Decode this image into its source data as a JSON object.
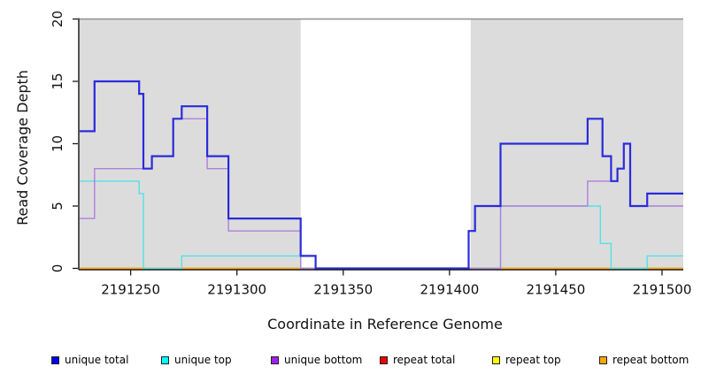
{
  "chart_data": {
    "type": "line",
    "subtype": "step-coverage-plot",
    "title": "",
    "xlabel": "Coordinate in Reference Genome",
    "ylabel": "Read Coverage Depth",
    "xlim": [
      2191226,
      2191510
    ],
    "ylim": [
      0,
      20
    ],
    "x_ticks": [
      2191250,
      2191300,
      2191350,
      2191400,
      2191450,
      2191500
    ],
    "y_ticks": [
      0,
      5,
      10,
      15,
      20
    ],
    "grid": false,
    "legend_position": "bottom",
    "plot_background": "#ffffff",
    "shaded_regions": {
      "color": "#dcdcdc",
      "ranges": [
        [
          2191226,
          2191330
        ],
        [
          2191410,
          2191510
        ]
      ]
    },
    "series": [
      {
        "name": "repeat total",
        "line_color": "#dd2222",
        "width": 1.4,
        "points": [
          [
            2191226,
            0
          ],
          [
            2191510,
            0
          ]
        ]
      },
      {
        "name": "repeat top",
        "line_color": "#eeee00",
        "width": 1.4,
        "points": [
          [
            2191226,
            0
          ],
          [
            2191510,
            0
          ]
        ]
      },
      {
        "name": "repeat bottom",
        "line_color": "#ffa520",
        "width": 1.8,
        "points": [
          [
            2191226,
            0
          ],
          [
            2191510,
            0
          ]
        ]
      },
      {
        "name": "unique top",
        "line_color": "#55e0e8",
        "width": 1.4,
        "points": [
          [
            2191226,
            7
          ],
          [
            2191254,
            6
          ],
          [
            2191256,
            0
          ],
          [
            2191274,
            1
          ],
          [
            2191330,
            0
          ],
          [
            2191424,
            5
          ],
          [
            2191471,
            2
          ],
          [
            2191476,
            0
          ],
          [
            2191493,
            1
          ],
          [
            2191510,
            1
          ]
        ]
      },
      {
        "name": "unique bottom",
        "line_color": "#b07fdc",
        "width": 1.4,
        "points": [
          [
            2191226,
            4
          ],
          [
            2191233,
            8
          ],
          [
            2191260,
            9
          ],
          [
            2191270,
            12
          ],
          [
            2191286,
            8
          ],
          [
            2191296,
            3
          ],
          [
            2191330,
            0
          ],
          [
            2191424,
            5
          ],
          [
            2191465,
            7
          ],
          [
            2191479,
            8
          ],
          [
            2191482,
            10
          ],
          [
            2191485,
            5
          ],
          [
            2191510,
            5
          ]
        ]
      },
      {
        "name": "unique total",
        "line_color": "#2b2bdc",
        "width": 2.2,
        "points": [
          [
            2191226,
            11
          ],
          [
            2191233,
            15
          ],
          [
            2191254,
            14
          ],
          [
            2191256,
            8
          ],
          [
            2191260,
            9
          ],
          [
            2191270,
            12
          ],
          [
            2191274,
            13
          ],
          [
            2191286,
            9
          ],
          [
            2191296,
            4
          ],
          [
            2191330,
            1
          ],
          [
            2191337,
            0
          ],
          [
            2191409,
            3
          ],
          [
            2191412,
            5
          ],
          [
            2191424,
            10
          ],
          [
            2191465,
            12
          ],
          [
            2191472,
            9
          ],
          [
            2191476,
            7
          ],
          [
            2191479,
            8
          ],
          [
            2191482,
            10
          ],
          [
            2191485,
            5
          ],
          [
            2191493,
            6
          ],
          [
            2191510,
            6
          ]
        ]
      }
    ],
    "legend": [
      {
        "label": "unique total",
        "swatch_color": "#0000ee"
      },
      {
        "label": "unique top",
        "swatch_color": "#00ffff"
      },
      {
        "label": "unique bottom",
        "swatch_color": "#a020f0"
      },
      {
        "label": "repeat total",
        "swatch_color": "#ee0000"
      },
      {
        "label": "repeat top",
        "swatch_color": "#ffff00"
      },
      {
        "label": "repeat bottom",
        "swatch_color": "#ffa500"
      }
    ]
  }
}
